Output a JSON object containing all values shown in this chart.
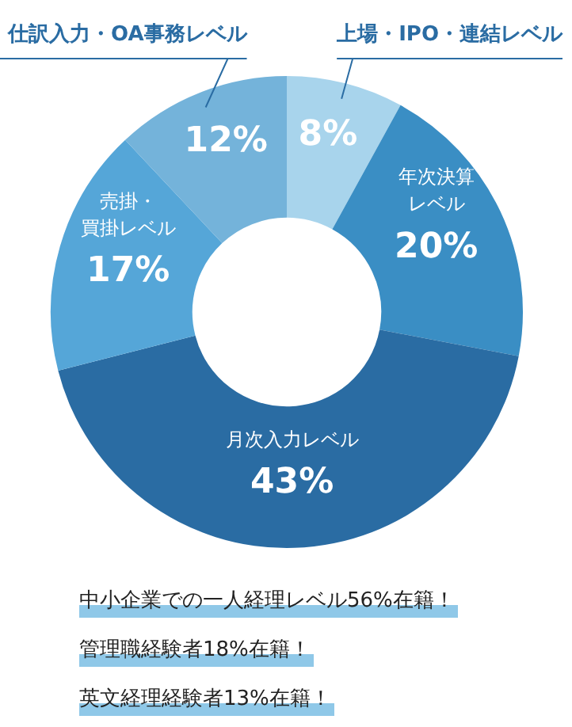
{
  "chart_data": {
    "type": "donut",
    "categories": [
      "上場・IPO・連結レベル",
      "年次決算レベル",
      "月次入力レベル",
      "売掛・買掛レベル",
      "仕訳入力・OA事務レベル"
    ],
    "values": [
      8,
      20,
      43,
      17,
      12
    ],
    "colors": [
      "#a8d4ec",
      "#3a8ec4",
      "#2a6ca3",
      "#55a6d8",
      "#74b3da"
    ],
    "value_labels": [
      "8%",
      "20%",
      "43%",
      "17%",
      "12%"
    ],
    "legend": false,
    "annotations": [
      "中小企業での一人経理レベル56%在籍！",
      "管理職経験者18%在籍！",
      "英文経理経験者13%在籍！"
    ]
  }
}
